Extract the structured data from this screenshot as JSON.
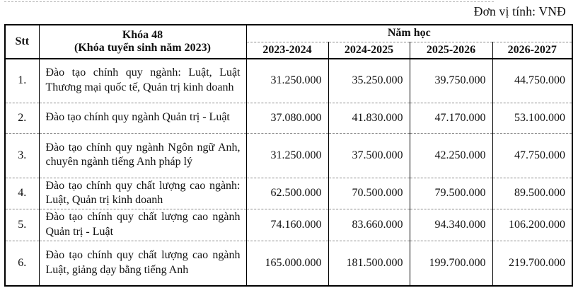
{
  "unit_label": "Đơn vị tính: VNĐ",
  "table": {
    "header": {
      "stt": "Stt",
      "cohort_line1": "Khóa 48",
      "cohort_line2": "(Khóa tuyển sinh năm 2023)",
      "year_group": "Năm học",
      "years": [
        "2023-2024",
        "2024-2025",
        "2025-2026",
        "2026-2027"
      ]
    },
    "rows": [
      {
        "stt": "1.",
        "program": "Đào tạo chính quy ngành: Luật, Luật Thương mại quốc tế, Quản trị kinh doanh",
        "values": [
          "31.250.000",
          "35.250.000",
          "39.750.000",
          "44.750.000"
        ]
      },
      {
        "stt": "2.",
        "program": "Đào tạo chính quy ngành Quản trị - Luật",
        "values": [
          "37.080.000",
          "41.830.000",
          "47.170.000",
          "53.100.000"
        ]
      },
      {
        "stt": "3.",
        "program": "Đào tạo chính quy ngành Ngôn ngữ Anh, chuyên ngành tiếng Anh pháp lý",
        "values": [
          "31.250.000",
          "37.500.000",
          "42.250.000",
          "47.750.000"
        ]
      },
      {
        "stt": "4.",
        "program": "Đào tạo chính quy chất lượng cao ngành: Luật, Quản trị kinh doanh",
        "values": [
          "62.500.000",
          "70.500.000",
          "79.500.000",
          "89.500.000"
        ]
      },
      {
        "stt": "5.",
        "program": "Đào tạo chính quy chất lượng cao ngành Quản trị - Luật",
        "values": [
          "74.160.000",
          "83.660.000",
          "94.340.000",
          "106.200.000"
        ]
      },
      {
        "stt": "6.",
        "program": "Đào tạo chính quy chất lượng cao ngành Luật, giảng dạy bằng tiếng Anh",
        "values": [
          "165.000.000",
          "181.500.000",
          "199.700.000",
          "219.700.000"
        ]
      }
    ]
  }
}
